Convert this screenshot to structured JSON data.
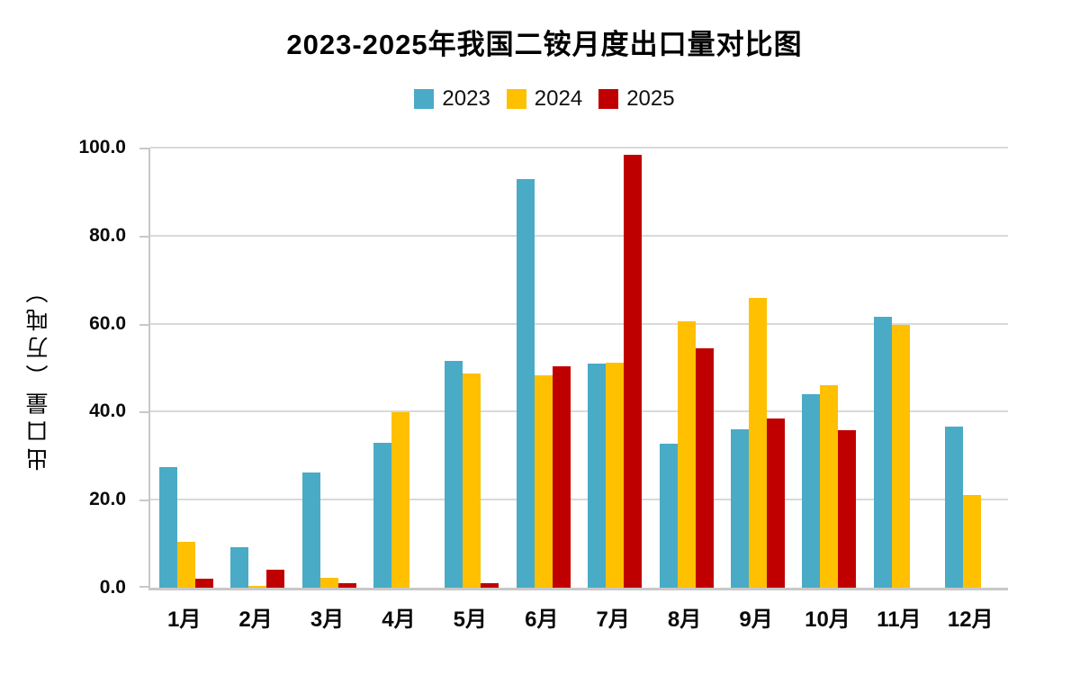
{
  "title": "2023-2025年我国二铵月度出口量对比图",
  "y_axis": {
    "title": "出口量（万吨）",
    "tick_labels_top_down": [
      "100.0",
      "80.0",
      "60.0",
      "40.0",
      "20.0",
      "0.0"
    ]
  },
  "chart_data": {
    "type": "bar",
    "title": "2023-2025年我国二铵月度出口量对比图",
    "categories": [
      "1月",
      "2月",
      "3月",
      "4月",
      "5月",
      "6月",
      "7月",
      "8月",
      "9月",
      "10月",
      "11月",
      "12月"
    ],
    "series": [
      {
        "name": "2023",
        "color": "#4aabc6",
        "values": [
          27.5,
          9.2,
          26.1,
          33.0,
          51.5,
          92.8,
          50.9,
          32.8,
          36.0,
          44.0,
          61.5,
          36.6
        ]
      },
      {
        "name": "2024",
        "color": "#ffc000",
        "values": [
          10.5,
          0.5,
          2.3,
          39.9,
          48.6,
          48.3,
          51.1,
          60.5,
          65.8,
          46.0,
          59.8,
          21.0
        ]
      },
      {
        "name": "2025",
        "color": "#c00000",
        "values": [
          2.0,
          4.1,
          1.0,
          null,
          1.0,
          50.4,
          98.3,
          54.3,
          38.4,
          35.7,
          null,
          null
        ]
      }
    ],
    "xlabel": "",
    "ylabel": "出口量（万吨）",
    "ylim": [
      0,
      100
    ],
    "ytick_step": 20,
    "grid": true,
    "legend_position": "top",
    "units": "万吨"
  },
  "colors": {
    "gridline": "#d9d9d9",
    "axis": "#c8c8c8",
    "text": "#000000",
    "background": "#ffffff"
  }
}
